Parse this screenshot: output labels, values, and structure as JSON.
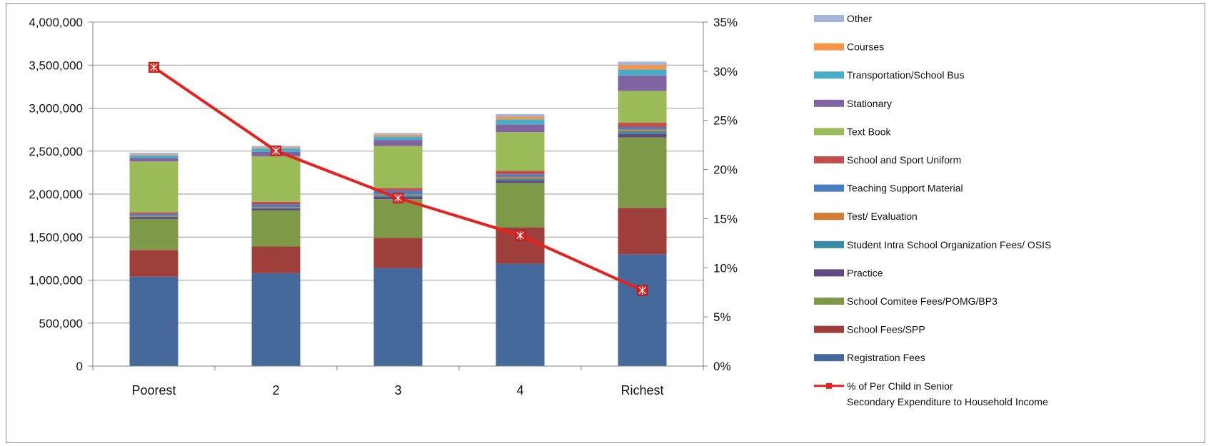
{
  "chart_data": {
    "type": "bar",
    "stacked": true,
    "categories": [
      "Poorest",
      "2",
      "3",
      "4",
      "Richest"
    ],
    "y_left": {
      "range": [
        0,
        4000000
      ],
      "ticks": [
        0,
        500000,
        1000000,
        1500000,
        2000000,
        2500000,
        3000000,
        3500000,
        4000000
      ],
      "tick_labels": [
        "0",
        "500,000",
        "1,000,000",
        "1,500,000",
        "2,000,000",
        "2,500,000",
        "3,000,000",
        "3,500,000",
        "4,000,000"
      ]
    },
    "y_right": {
      "range": [
        0,
        35
      ],
      "ticks": [
        0,
        5,
        10,
        15,
        20,
        25,
        30,
        35
      ],
      "tick_labels": [
        "0%",
        "5%",
        "10%",
        "15%",
        "20%",
        "25%",
        "30%",
        "35%"
      ]
    },
    "grid": true,
    "legend_position": "right",
    "series": [
      {
        "name": "Registration Fees",
        "color": "#44699A",
        "values": [
          1040000,
          1080000,
          1140000,
          1190000,
          1300000
        ]
      },
      {
        "name": "School Fees/SPP",
        "color": "#9E3F3B",
        "values": [
          310000,
          310000,
          350000,
          420000,
          540000
        ]
      },
      {
        "name": "School Comitee Fees/POMG/BP3",
        "color": "#7E9A48",
        "values": [
          360000,
          420000,
          450000,
          520000,
          820000
        ]
      },
      {
        "name": "Practice",
        "color": "#624A80",
        "values": [
          20000,
          20000,
          30000,
          30000,
          40000
        ]
      },
      {
        "name": "Student Intra School Organization Fees/ OSIS",
        "color": "#3A8AA3",
        "values": [
          10000,
          10000,
          20000,
          20000,
          30000
        ]
      },
      {
        "name": "Test/ Evaluation",
        "color": "#D27D36",
        "values": [
          10000,
          10000,
          10000,
          20000,
          20000
        ]
      },
      {
        "name": "Teaching Support Material",
        "color": "#4A7CC0",
        "values": [
          20000,
          30000,
          40000,
          30000,
          30000
        ]
      },
      {
        "name": "School and Sport Uniform",
        "color": "#C24F4B",
        "values": [
          20000,
          30000,
          30000,
          40000,
          50000
        ]
      },
      {
        "name": "Text Book",
        "color": "#9BBB59",
        "values": [
          590000,
          530000,
          490000,
          450000,
          370000
        ]
      },
      {
        "name": "Stationary",
        "color": "#8064A2",
        "values": [
          40000,
          50000,
          70000,
          90000,
          180000
        ]
      },
      {
        "name": "Transportation/School Bus",
        "color": "#4BACC6",
        "values": [
          30000,
          40000,
          40000,
          60000,
          70000
        ]
      },
      {
        "name": "Courses",
        "color": "#F79646",
        "values": [
          10000,
          10000,
          20000,
          30000,
          50000
        ]
      },
      {
        "name": "Other",
        "color": "#A5B5D9",
        "values": [
          20000,
          20000,
          20000,
          30000,
          40000
        ]
      }
    ],
    "line_series": {
      "name": "% of Per Child in Senior Secondary Expenditure to Household Income",
      "color": "#E8211F",
      "axis": "right",
      "values": [
        30.4,
        21.9,
        17.1,
        13.3,
        7.7
      ]
    }
  }
}
